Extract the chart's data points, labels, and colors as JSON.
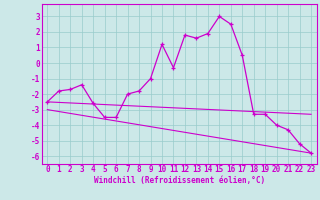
{
  "xlabel": "Windchill (Refroidissement éolien,°C)",
  "bg_color": "#cce8e8",
  "grid_color": "#99cccc",
  "line_color": "#cc00cc",
  "xlim": [
    -0.5,
    23.5
  ],
  "ylim": [
    -6.5,
    3.8
  ],
  "yticks": [
    -6,
    -5,
    -4,
    -3,
    -2,
    -1,
    0,
    1,
    2,
    3
  ],
  "xticks": [
    0,
    1,
    2,
    3,
    4,
    5,
    6,
    7,
    8,
    9,
    10,
    11,
    12,
    13,
    14,
    15,
    16,
    17,
    18,
    19,
    20,
    21,
    22,
    23
  ],
  "line1_x": [
    0,
    1,
    2,
    3,
    4,
    5,
    6,
    7,
    8,
    9,
    10,
    11,
    12,
    13,
    14,
    15,
    16,
    17,
    18,
    19,
    20,
    21,
    22,
    23
  ],
  "line1_y": [
    -2.5,
    -1.8,
    -1.7,
    -1.4,
    -2.6,
    -3.5,
    -3.5,
    -2.0,
    -1.8,
    -1.0,
    1.2,
    -0.3,
    1.8,
    1.6,
    1.9,
    3.0,
    2.5,
    0.5,
    -3.3,
    -3.3,
    -4.0,
    -4.3,
    -5.2,
    -5.8
  ],
  "line2_x": [
    0,
    23
  ],
  "line2_y": [
    -2.5,
    -3.3
  ],
  "line3_x": [
    0,
    23
  ],
  "line3_y": [
    -3.0,
    -5.8
  ],
  "tick_fontsize": 5.5,
  "xlabel_fontsize": 5.5
}
